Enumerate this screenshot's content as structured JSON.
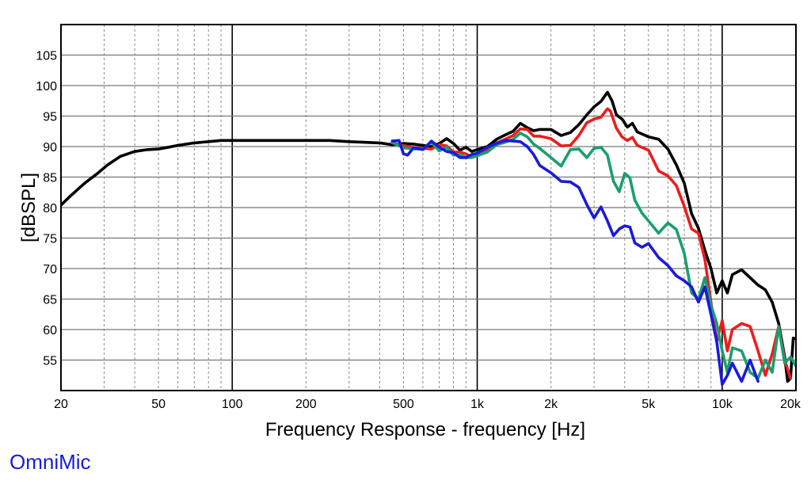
{
  "brand": {
    "label": "OmniMic",
    "color": "#1a1adc"
  },
  "chart_data": {
    "type": "line",
    "title": "",
    "xlabel": "Frequency Response - frequency [Hz]",
    "ylabel": "[dBSPL]",
    "xscale": "log",
    "xlim": [
      20,
      20000
    ],
    "ylim": [
      50,
      110
    ],
    "grid": true,
    "legend": "none",
    "x_ticks": [
      {
        "value": 20,
        "label": "20"
      },
      {
        "value": 50,
        "label": "50"
      },
      {
        "value": 100,
        "label": "100"
      },
      {
        "value": 200,
        "label": "200"
      },
      {
        "value": 500,
        "label": "500"
      },
      {
        "value": 1000,
        "label": "1k"
      },
      {
        "value": 2000,
        "label": "2k"
      },
      {
        "value": 5000,
        "label": "5k"
      },
      {
        "value": 10000,
        "label": "10k"
      },
      {
        "value": 20000,
        "label": "20k"
      }
    ],
    "y_ticks": [
      {
        "value": 55,
        "label": "55"
      },
      {
        "value": 60,
        "label": "60"
      },
      {
        "value": 65,
        "label": "65"
      },
      {
        "value": 70,
        "label": "70"
      },
      {
        "value": 75,
        "label": "75"
      },
      {
        "value": 80,
        "label": "80"
      },
      {
        "value": 85,
        "label": "85"
      },
      {
        "value": 90,
        "label": "90"
      },
      {
        "value": 95,
        "label": "95"
      },
      {
        "value": 100,
        "label": "100"
      },
      {
        "value": 105,
        "label": "105"
      }
    ],
    "series": [
      {
        "color": "#000000",
        "points": [
          [
            20,
            80.4
          ],
          [
            22,
            82
          ],
          [
            25,
            84
          ],
          [
            28,
            85.5
          ],
          [
            31,
            87
          ],
          [
            35,
            88.4
          ],
          [
            40,
            89.2
          ],
          [
            45,
            89.5
          ],
          [
            50,
            89.6
          ],
          [
            55,
            89.9
          ],
          [
            60,
            90.2
          ],
          [
            70,
            90.6
          ],
          [
            80,
            90.8
          ],
          [
            90,
            91
          ],
          [
            100,
            91
          ],
          [
            120,
            91
          ],
          [
            150,
            91
          ],
          [
            200,
            91
          ],
          [
            250,
            91
          ],
          [
            300,
            90.8
          ],
          [
            400,
            90.6
          ],
          [
            450,
            90.3
          ],
          [
            500,
            90.5
          ],
          [
            550,
            90.4
          ],
          [
            600,
            90.2
          ],
          [
            650,
            90
          ],
          [
            700,
            90.5
          ],
          [
            750,
            91.3
          ],
          [
            800,
            90.5
          ],
          [
            850,
            89.4
          ],
          [
            900,
            89.9
          ],
          [
            950,
            89.2
          ],
          [
            1000,
            89.5
          ],
          [
            1100,
            90
          ],
          [
            1200,
            91.2
          ],
          [
            1300,
            91.9
          ],
          [
            1400,
            92.5
          ],
          [
            1500,
            93.8
          ],
          [
            1600,
            93.1
          ],
          [
            1700,
            92.6
          ],
          [
            1800,
            92.8
          ],
          [
            2000,
            92.8
          ],
          [
            2200,
            91.8
          ],
          [
            2400,
            92.3
          ],
          [
            2600,
            93.6
          ],
          [
            2800,
            95.2
          ],
          [
            3000,
            96.5
          ],
          [
            3200,
            97.4
          ],
          [
            3400,
            98.9
          ],
          [
            3550,
            97.5
          ],
          [
            3700,
            95.2
          ],
          [
            3900,
            94.5
          ],
          [
            4100,
            93.2
          ],
          [
            4300,
            93.8
          ],
          [
            4500,
            92.4
          ],
          [
            5000,
            91.6
          ],
          [
            5500,
            91.2
          ],
          [
            6000,
            89.6
          ],
          [
            6500,
            87
          ],
          [
            7000,
            84
          ],
          [
            7500,
            79
          ],
          [
            8000,
            76.6
          ],
          [
            8500,
            73
          ],
          [
            9000,
            70
          ],
          [
            9500,
            66
          ],
          [
            10000,
            68
          ],
          [
            10500,
            66
          ],
          [
            11000,
            69
          ],
          [
            12000,
            69.8
          ],
          [
            13000,
            68.5
          ],
          [
            14000,
            67.3
          ],
          [
            15000,
            66.5
          ],
          [
            16000,
            64.5
          ],
          [
            17000,
            61
          ],
          [
            18000,
            55.5
          ],
          [
            18500,
            51.5
          ],
          [
            19000,
            52
          ],
          [
            19500,
            58.6
          ],
          [
            20000,
            58.5
          ]
        ]
      },
      {
        "color": "#ee1c1c",
        "points": [
          [
            450,
            90.6
          ],
          [
            500,
            90.2
          ],
          [
            550,
            89.8
          ],
          [
            600,
            89.7
          ],
          [
            650,
            89.6
          ],
          [
            700,
            90.3
          ],
          [
            750,
            90.1
          ],
          [
            800,
            89.1
          ],
          [
            850,
            89.1
          ],
          [
            900,
            88.8
          ],
          [
            950,
            88.2
          ],
          [
            1000,
            88.6
          ],
          [
            1100,
            89.5
          ],
          [
            1200,
            90.6
          ],
          [
            1300,
            91.2
          ],
          [
            1400,
            91.8
          ],
          [
            1500,
            92.9
          ],
          [
            1600,
            92.8
          ],
          [
            1700,
            91.7
          ],
          [
            1800,
            91.7
          ],
          [
            2000,
            91.3
          ],
          [
            2200,
            90.1
          ],
          [
            2400,
            90.2
          ],
          [
            2600,
            91.8
          ],
          [
            2800,
            93.9
          ],
          [
            3000,
            94.5
          ],
          [
            3200,
            94.8
          ],
          [
            3400,
            96.2
          ],
          [
            3500,
            95.8
          ],
          [
            3700,
            93
          ],
          [
            3900,
            91.6
          ],
          [
            4100,
            91
          ],
          [
            4300,
            91.5
          ],
          [
            4500,
            90.2
          ],
          [
            5000,
            89.4
          ],
          [
            5500,
            86
          ],
          [
            6000,
            85.2
          ],
          [
            6500,
            83.6
          ],
          [
            7000,
            80.2
          ],
          [
            7500,
            76.5
          ],
          [
            8000,
            75.8
          ],
          [
            8500,
            71.5
          ],
          [
            9000,
            64.5
          ],
          [
            9500,
            58
          ],
          [
            10000,
            61.5
          ],
          [
            10500,
            56.5
          ],
          [
            11000,
            60
          ],
          [
            12000,
            61
          ],
          [
            13000,
            60.5
          ],
          [
            14000,
            56.5
          ],
          [
            15000,
            52.5
          ],
          [
            16000,
            56
          ],
          [
            17000,
            60.5
          ],
          [
            18000,
            55
          ],
          [
            19000,
            52
          ]
        ]
      },
      {
        "color": "#1a9e6e",
        "points": [
          [
            450,
            90.7
          ],
          [
            500,
            89.8
          ],
          [
            550,
            89.6
          ],
          [
            600,
            89.6
          ],
          [
            650,
            90.7
          ],
          [
            700,
            89.3
          ],
          [
            750,
            89.9
          ],
          [
            800,
            88.6
          ],
          [
            850,
            88.7
          ],
          [
            900,
            88.2
          ],
          [
            950,
            88.2
          ],
          [
            1000,
            88.5
          ],
          [
            1100,
            89.1
          ],
          [
            1200,
            90.3
          ],
          [
            1300,
            90.7
          ],
          [
            1400,
            91.2
          ],
          [
            1500,
            92.2
          ],
          [
            1600,
            91.6
          ],
          [
            1700,
            90.4
          ],
          [
            1800,
            89.7
          ],
          [
            2000,
            88.2
          ],
          [
            2200,
            86.8
          ],
          [
            2400,
            89.5
          ],
          [
            2600,
            89.6
          ],
          [
            2800,
            88.2
          ],
          [
            3000,
            89.7
          ],
          [
            3200,
            89.9
          ],
          [
            3400,
            88.6
          ],
          [
            3600,
            84.3
          ],
          [
            3800,
            82.6
          ],
          [
            4000,
            85.6
          ],
          [
            4200,
            84.9
          ],
          [
            4400,
            81.2
          ],
          [
            4700,
            79.1
          ],
          [
            5000,
            77.8
          ],
          [
            5500,
            75.8
          ],
          [
            6000,
            77.5
          ],
          [
            6500,
            76.4
          ],
          [
            7000,
            72.5
          ],
          [
            7500,
            66
          ],
          [
            8000,
            65
          ],
          [
            8500,
            68.5
          ],
          [
            9000,
            64
          ],
          [
            9500,
            61
          ],
          [
            10000,
            56.5
          ],
          [
            10500,
            53
          ],
          [
            11000,
            57
          ],
          [
            12000,
            56.5
          ],
          [
            13000,
            53
          ],
          [
            14000,
            52
          ],
          [
            15000,
            55
          ],
          [
            16000,
            53
          ],
          [
            17000,
            60.5
          ],
          [
            18000,
            54.5
          ],
          [
            19000,
            55.5
          ],
          [
            20000,
            54
          ]
        ]
      },
      {
        "color": "#1a1adc",
        "points": [
          [
            450,
            90.9
          ],
          [
            480,
            91
          ],
          [
            500,
            88.8
          ],
          [
            520,
            88.6
          ],
          [
            550,
            89.8
          ],
          [
            600,
            89.5
          ],
          [
            650,
            90.9
          ],
          [
            700,
            89.9
          ],
          [
            750,
            89.2
          ],
          [
            800,
            89
          ],
          [
            850,
            88.2
          ],
          [
            900,
            88.2
          ],
          [
            950,
            88.7
          ],
          [
            1000,
            88.9
          ],
          [
            1100,
            89.9
          ],
          [
            1200,
            90.5
          ],
          [
            1300,
            91
          ],
          [
            1400,
            90.9
          ],
          [
            1500,
            90.8
          ],
          [
            1600,
            90
          ],
          [
            1700,
            88.7
          ],
          [
            1800,
            86.9
          ],
          [
            2000,
            85.7
          ],
          [
            2200,
            84.3
          ],
          [
            2400,
            84.2
          ],
          [
            2600,
            83.3
          ],
          [
            2800,
            80.5
          ],
          [
            3000,
            78.3
          ],
          [
            3200,
            80.1
          ],
          [
            3400,
            77.8
          ],
          [
            3600,
            75.4
          ],
          [
            3800,
            76.5
          ],
          [
            4000,
            77
          ],
          [
            4200,
            76.8
          ],
          [
            4400,
            74.2
          ],
          [
            4700,
            73.5
          ],
          [
            5000,
            74.1
          ],
          [
            5500,
            71.8
          ],
          [
            6000,
            70.5
          ],
          [
            6500,
            68.8
          ],
          [
            7000,
            68
          ],
          [
            7500,
            67
          ],
          [
            8000,
            64.5
          ],
          [
            8500,
            67
          ],
          [
            9000,
            62.5
          ],
          [
            9500,
            58
          ],
          [
            10000,
            51
          ],
          [
            10500,
            52.5
          ],
          [
            11000,
            54.5
          ],
          [
            12000,
            51.5
          ],
          [
            13000,
            55
          ],
          [
            14000,
            51.5
          ]
        ]
      }
    ]
  }
}
